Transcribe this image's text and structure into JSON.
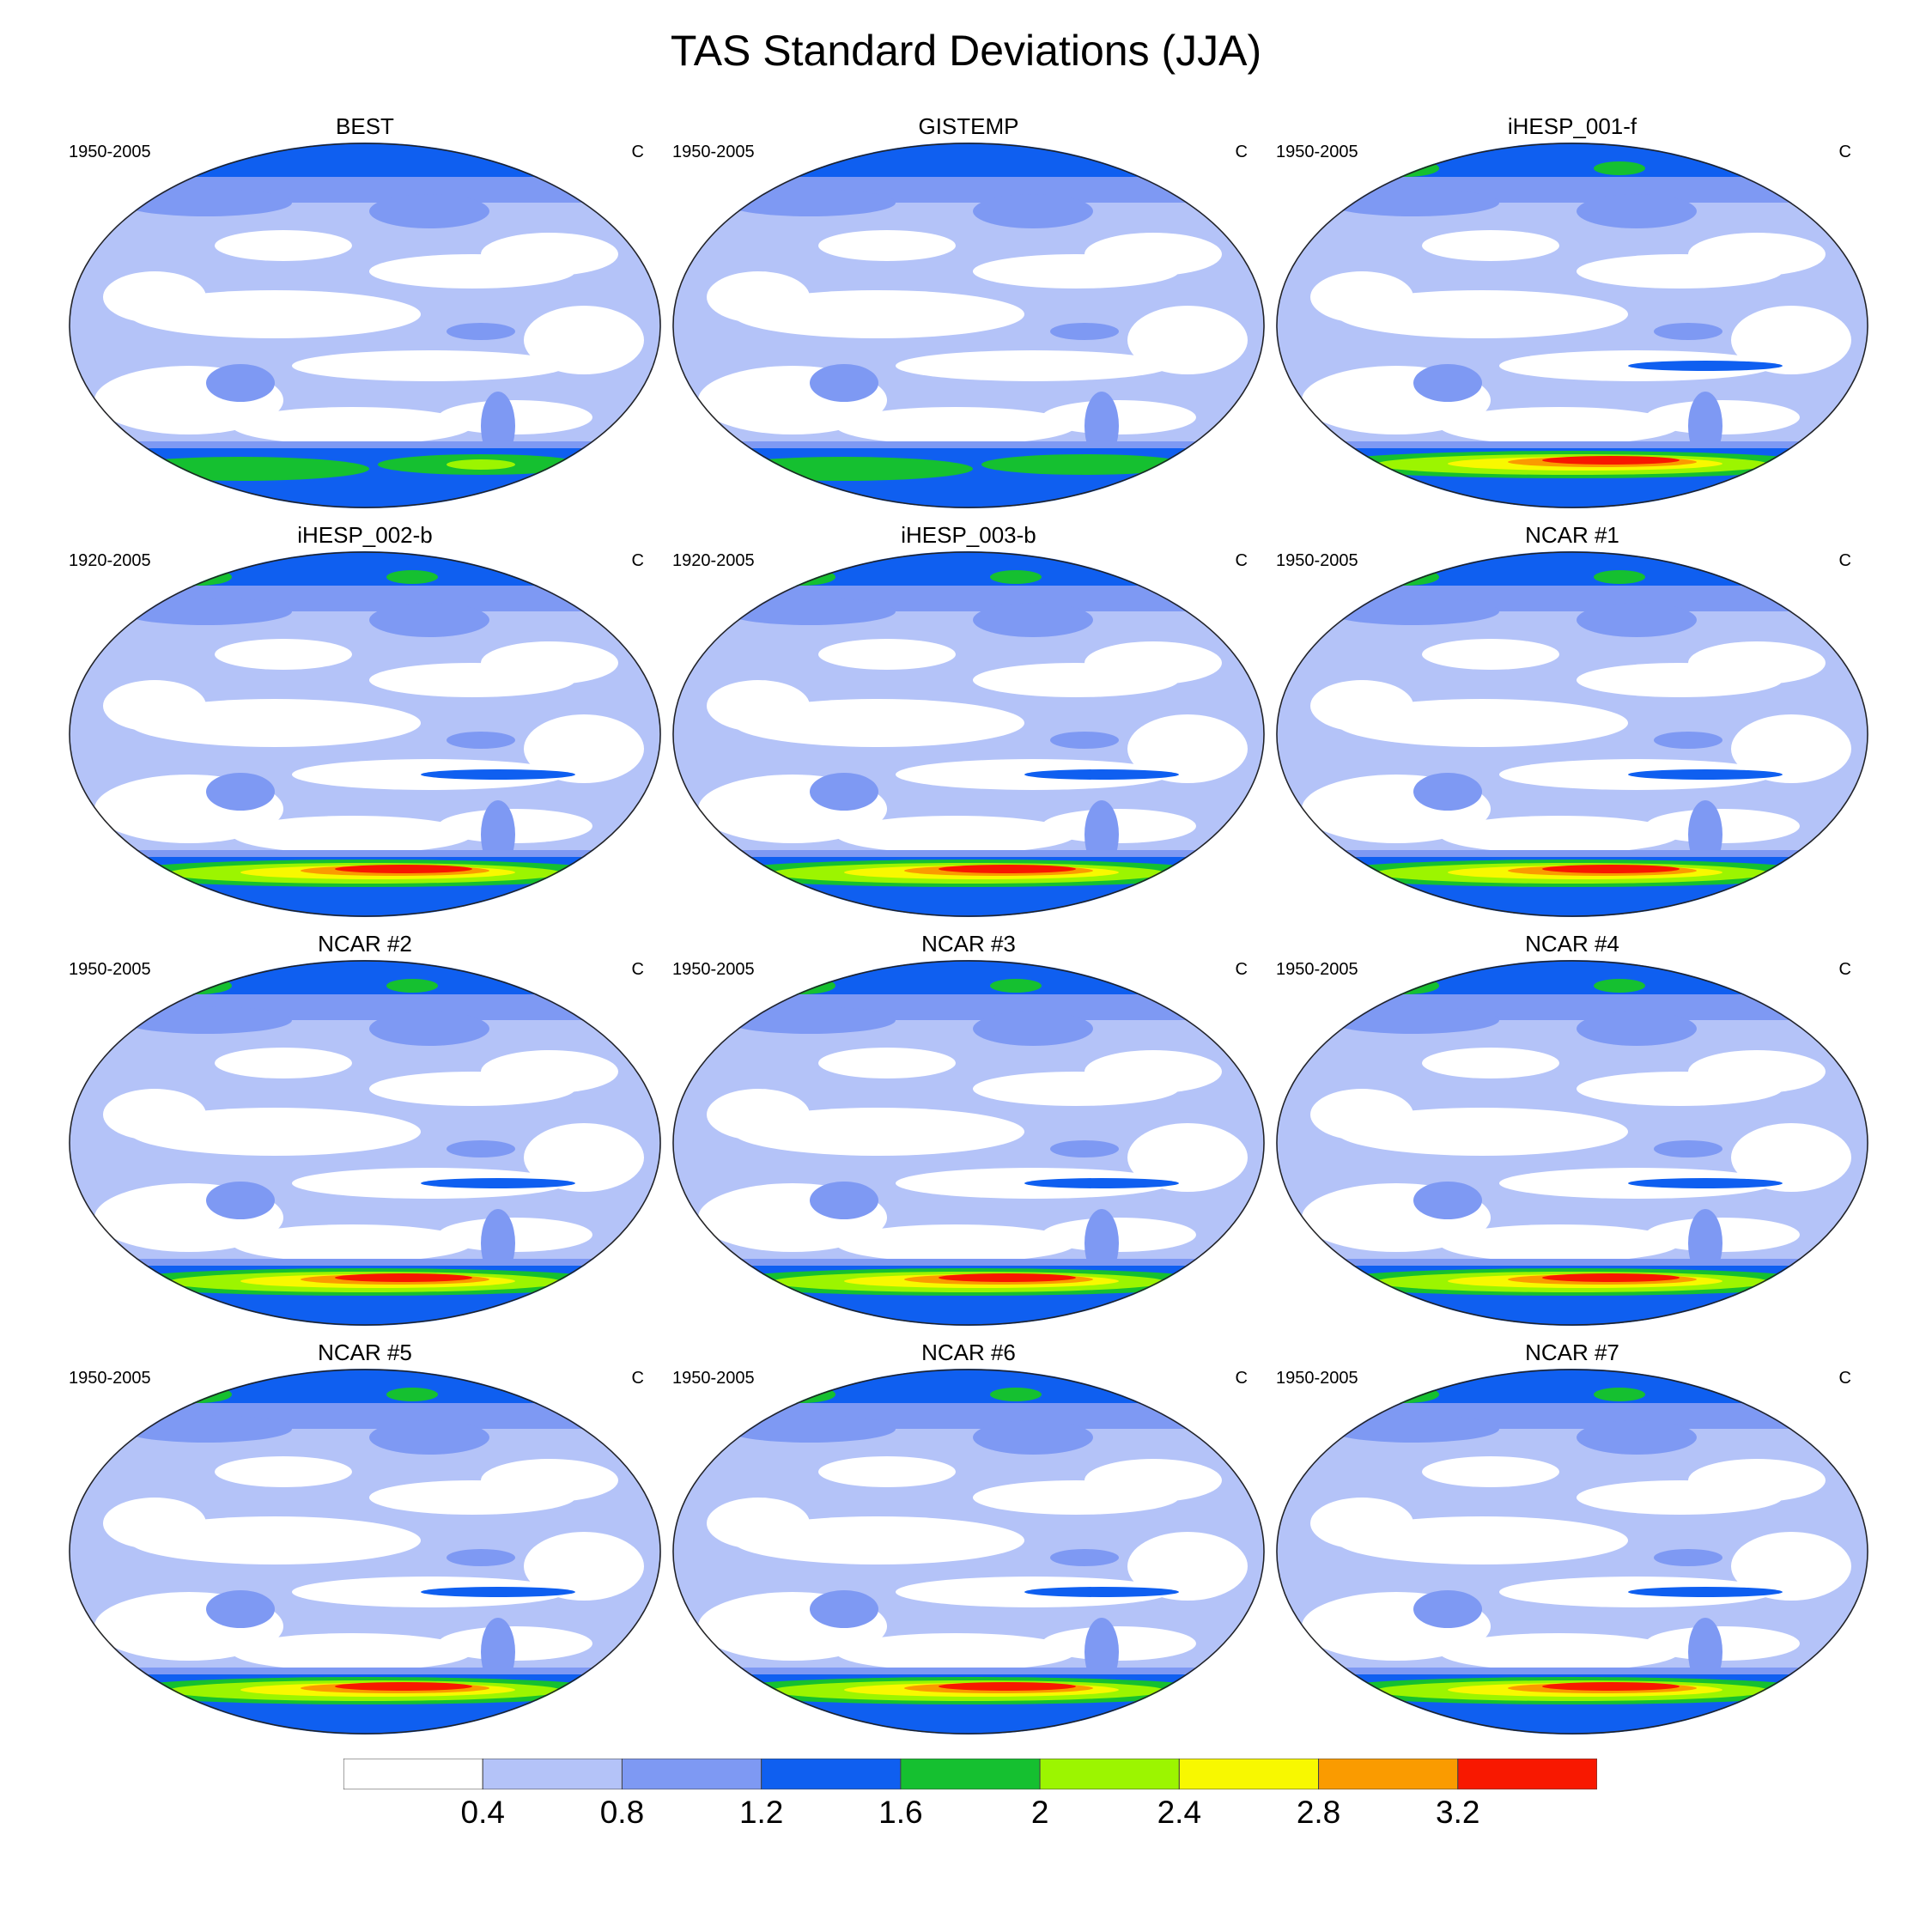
{
  "title": "TAS Standard Deviations (JJA)",
  "panels": [
    {
      "name": "BEST",
      "period": "1950-2005",
      "unit": "C",
      "style": "obs1"
    },
    {
      "name": "GISTEMP",
      "period": "1950-2005",
      "unit": "C",
      "style": "obs2"
    },
    {
      "name": "iHESP_001-f",
      "period": "1950-2005",
      "unit": "C",
      "style": "model"
    },
    {
      "name": "iHESP_002-b",
      "period": "1920-2005",
      "unit": "C",
      "style": "model"
    },
    {
      "name": "iHESP_003-b",
      "period": "1920-2005",
      "unit": "C",
      "style": "model"
    },
    {
      "name": "NCAR #1",
      "period": "1950-2005",
      "unit": "C",
      "style": "model"
    },
    {
      "name": "NCAR #2",
      "period": "1950-2005",
      "unit": "C",
      "style": "model"
    },
    {
      "name": "NCAR #3",
      "period": "1950-2005",
      "unit": "C",
      "style": "model"
    },
    {
      "name": "NCAR #4",
      "period": "1950-2005",
      "unit": "C",
      "style": "model"
    },
    {
      "name": "NCAR #5",
      "period": "1950-2005",
      "unit": "C",
      "style": "model"
    },
    {
      "name": "NCAR #6",
      "period": "1950-2005",
      "unit": "C",
      "style": "model"
    },
    {
      "name": "NCAR #7",
      "period": "1950-2005",
      "unit": "C",
      "style": "model"
    }
  ],
  "colorbar": {
    "labels": [
      "0.4",
      "0.8",
      "1.2",
      "1.6",
      "2",
      "2.4",
      "2.8",
      "3.2"
    ],
    "colors": [
      "#ffffff",
      "#b4c3f8",
      "#7e99f3",
      "#0f5ff0",
      "#15c030",
      "#9cf500",
      "#f8f800",
      "#fa9b00",
      "#f81800"
    ]
  }
}
